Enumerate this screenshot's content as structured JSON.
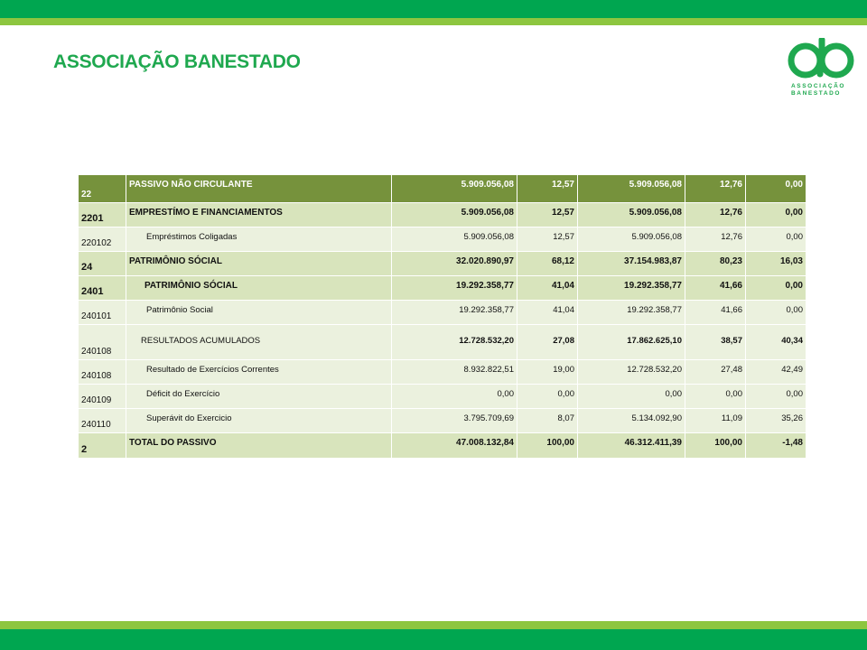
{
  "header": {
    "title": "ASSOCIAÇÃO BANESTADO",
    "logo_line1": "ASSOCIAÇÃO",
    "logo_line2": "BANESTADO",
    "colors": {
      "dark_green": "#00a650",
      "light_green": "#8dc63f",
      "header_row": "#76923c"
    }
  },
  "table": {
    "rows": [
      {
        "code": "22",
        "desc": "PASSIVO  NÃO CIRCULANTE",
        "v1": "5.909.056,08",
        "p1": "12,57",
        "v2": "5.909.056,08",
        "p2": "12,76",
        "var": "0,00"
      },
      {
        "code": "2201",
        "desc": "EMPRESTÍMO E FINANCIAMENTOS",
        "v1": "5.909.056,08",
        "p1": "12,57",
        "v2": "5.909.056,08",
        "p2": "12,76",
        "var": "0,00"
      },
      {
        "code": "220102",
        "desc": "Empréstimos Coligadas",
        "v1": "5.909.056,08",
        "p1": "12,57",
        "v2": "5.909.056,08",
        "p2": "12,76",
        "var": "0,00"
      },
      {
        "code": "24",
        "desc": "PATRIMÔNIO SÓCIAL",
        "v1": "32.020.890,97",
        "p1": "68,12",
        "v2": "37.154.983,87",
        "p2": "80,23",
        "var": "16,03"
      },
      {
        "code": "2401",
        "desc": "PATRIMÔNIO SÓCIAL",
        "v1": "19.292.358,77",
        "p1": "41,04",
        "v2": "19.292.358,77",
        "p2": "41,66",
        "var": "0,00"
      },
      {
        "code": "240101",
        "desc": "Patrimônio Social",
        "v1": "19.292.358,77",
        "p1": "41,04",
        "v2": "19.292.358,77",
        "p2": "41,66",
        "var": "0,00"
      },
      {
        "code": "240108",
        "desc": "RESULTADOS ACUMULADOS",
        "v1": "12.728.532,20",
        "p1": "27,08",
        "v2": "17.862.625,10",
        "p2": "38,57",
        "var": "40,34"
      },
      {
        "code": "240108",
        "desc": "Resultado de Exercícios Correntes",
        "v1": "8.932.822,51",
        "p1": "19,00",
        "v2": "12.728.532,20",
        "p2": "27,48",
        "var": "42,49"
      },
      {
        "code": "240109",
        "desc": "Déficit do Exercício",
        "v1": "0,00",
        "p1": "0,00",
        "v2": "0,00",
        "p2": "0,00",
        "var": "0,00"
      },
      {
        "code": "240110",
        "desc": "Superávit do Exercicio",
        "v1": "3.795.709,69",
        "p1": "8,07",
        "v2": "5.134.092,90",
        "p2": "11,09",
        "var": "35,26"
      },
      {
        "code": "2",
        "desc": "TOTAL DO PASSIVO",
        "v1": "47.008.132,84",
        "p1": "100,00",
        "v2": "46.312.411,39",
        "p2": "100,00",
        "var": "-1,48"
      }
    ]
  }
}
